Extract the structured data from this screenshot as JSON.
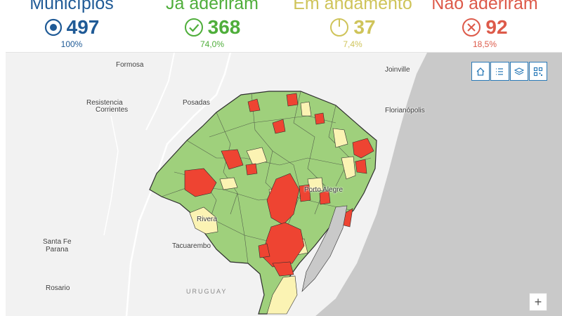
{
  "stats": [
    {
      "title": "Municípios",
      "value": "497",
      "percent": "100%",
      "icon": "target-icon",
      "color": "#1f5a96"
    },
    {
      "title": "Já aderiram",
      "value": "368",
      "percent": "74,0%",
      "icon": "check-circle-icon",
      "color": "#4fae3b"
    },
    {
      "title": "Em andamento",
      "value": "37",
      "percent": "7,4%",
      "icon": "progress-circle-icon",
      "color": "#cfc45a"
    },
    {
      "title": "Não aderiram",
      "value": "92",
      "percent": "18,5%",
      "icon": "x-circle-icon",
      "color": "#dd5a4a"
    }
  ],
  "map": {
    "places": {
      "formosa": "Formosa",
      "resistencia": "Resistencia",
      "corrientes": "Corrientes",
      "posadas": "Posadas",
      "joinville": "Joinville",
      "florianopolis": "Florianópolis",
      "porto_alegre": "Porto Alegre",
      "rivera": "Rivera",
      "santa_fe": "Santa Fe",
      "parana": "Parana",
      "tacuarembo": "Tacuarembo",
      "rosario": "Rosario",
      "uruguay": "URUGUAY"
    },
    "colors": {
      "aderiram": "#9fd07c",
      "andamento": "#fbf3b3",
      "nao_aderiram": "#ee4432",
      "ocean": "#c9c9c9",
      "land": "#f2f2f2"
    },
    "toolbar": [
      "home-icon",
      "legend-icon",
      "layers-icon",
      "qr-icon"
    ],
    "zoom_in": "+"
  }
}
